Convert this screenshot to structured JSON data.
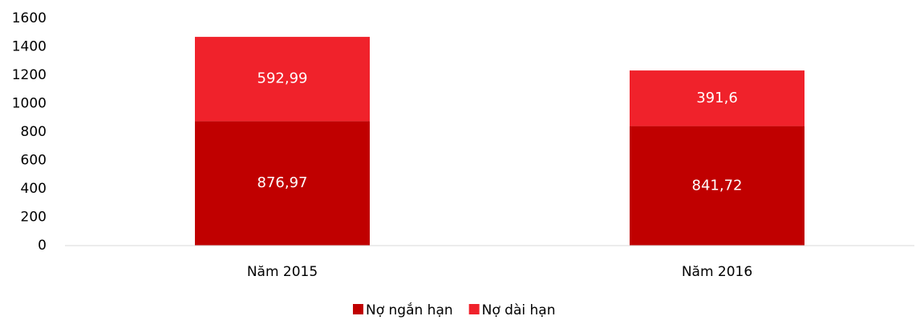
{
  "chart_data": {
    "type": "stacked_bar",
    "categories": [
      "Năm 2015",
      "Năm 2016"
    ],
    "series": [
      {
        "name": "Nợ ngắn hạn",
        "color": "#c00000",
        "values": [
          876.97,
          841.72
        ],
        "value_labels": [
          "876,97",
          "841,72"
        ]
      },
      {
        "name": "Nợ dài hạn",
        "color": "#f0222b",
        "values": [
          592.99,
          391.6
        ],
        "value_labels": [
          "592,99",
          "391,6"
        ]
      }
    ],
    "ylim": [
      0,
      1600
    ],
    "yticks": [
      0,
      200,
      400,
      600,
      800,
      1000,
      1200,
      1400,
      1600
    ],
    "grid": false,
    "legend": "bottom"
  }
}
